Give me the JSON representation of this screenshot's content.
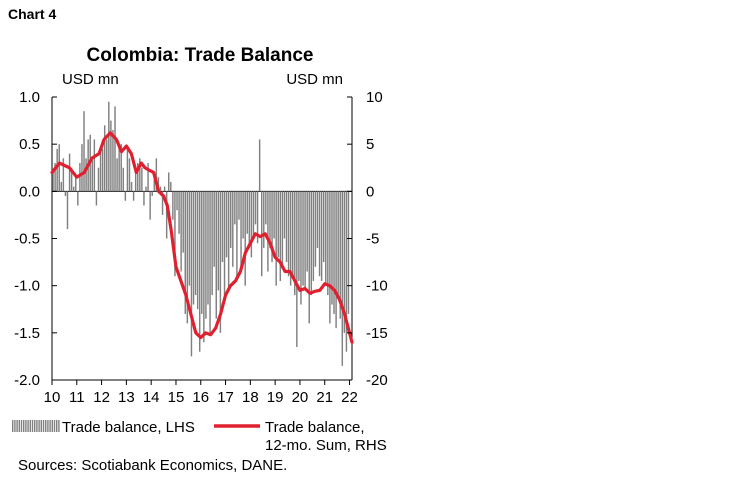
{
  "page": {
    "chart_label": "Chart 4",
    "source": "Sources: Scotiabank Economics, DANE."
  },
  "chart_data": {
    "type": "bar",
    "title": "Colombia: Trade Balance",
    "left_unit": "USD mn",
    "right_unit": "USD mn",
    "x_ticks": [
      "10",
      "11",
      "12",
      "13",
      "14",
      "15",
      "16",
      "17",
      "18",
      "19",
      "20",
      "21",
      "22"
    ],
    "x_range": [
      2010,
      2022.1
    ],
    "y_left": {
      "range": [
        -2.0,
        1.0
      ],
      "ticks": [
        "1.0",
        "0.5",
        "0.0",
        "-0.5",
        "-1.0",
        "-1.5",
        "-2.0"
      ]
    },
    "y_right": {
      "range": [
        -20,
        10
      ],
      "ticks": [
        "10",
        "5",
        "0",
        "-5",
        "-10",
        "-15",
        "-20"
      ]
    },
    "grid": false,
    "legend_position": "bottom",
    "series": [
      {
        "name": "Trade balance, LHS",
        "axis": "left",
        "kind": "bar",
        "color": "#808080",
        "start_year": 2010,
        "values": [
          0.2,
          0.3,
          0.45,
          0.5,
          0.1,
          0.35,
          -0.05,
          -0.4,
          0.4,
          0.25,
          0.05,
          0.15,
          -0.15,
          0.3,
          0.5,
          0.85,
          0.35,
          0.55,
          0.6,
          0.35,
          0.55,
          -0.15,
          0.25,
          0.45,
          0.45,
          0.7,
          0.55,
          0.95,
          0.75,
          0.65,
          0.9,
          0.35,
          0.5,
          0.5,
          0.25,
          -0.1,
          0.45,
          0.35,
          0.1,
          -0.1,
          0.2,
          0.3,
          0.35,
          0.25,
          -0.15,
          0.05,
          0.3,
          -0.3,
          -0.05,
          0.2,
          0.35,
          0.15,
          0.05,
          -0.25,
          0.05,
          -0.5,
          0.2,
          0.1,
          -0.3,
          -0.9,
          -0.2,
          -0.45,
          -0.85,
          -0.65,
          -1.3,
          -1.4,
          -1.0,
          -1.75,
          -1.2,
          -1.1,
          -1.25,
          -1.7,
          -1.3,
          -1.6,
          -1.35,
          -1.2,
          -1.5,
          -1.1,
          -0.8,
          -1.35,
          -1.05,
          -1.5,
          -0.75,
          -1.1,
          -0.7,
          -1.05,
          -0.6,
          -0.8,
          -0.35,
          -0.9,
          -0.3,
          -0.8,
          -0.5,
          -1.0,
          -0.45,
          -0.6,
          -0.7,
          -0.5,
          -0.35,
          -0.55,
          0.55,
          -0.9,
          -0.6,
          -0.35,
          -0.85,
          -0.6,
          -0.75,
          -0.5,
          -1.0,
          -0.7,
          -0.95,
          -0.8,
          -0.5,
          -0.75,
          -0.9,
          -1.0,
          -0.9,
          -1.1,
          -1.65,
          -0.95,
          -1.2,
          -1.0,
          -1.05,
          -0.85,
          -1.4,
          -1.1,
          -0.95,
          -0.8,
          -0.6,
          -0.9,
          -0.95,
          -0.75,
          -1.0,
          -1.1,
          -1.4,
          -1.2,
          -1.3,
          -1.45,
          -1.1,
          -1.35,
          -1.85,
          -1.5,
          -1.7,
          -1.3
        ]
      },
      {
        "name": "Trade balance, 12-mo. Sum, RHS",
        "axis": "right",
        "kind": "line",
        "color": "#e0202e",
        "points": [
          [
            2010.0,
            2.0
          ],
          [
            2010.3,
            3.0
          ],
          [
            2010.7,
            2.5
          ],
          [
            2011.0,
            1.5
          ],
          [
            2011.3,
            2.0
          ],
          [
            2011.6,
            3.5
          ],
          [
            2011.9,
            4.0
          ],
          [
            2012.1,
            5.5
          ],
          [
            2012.35,
            6.2
          ],
          [
            2012.6,
            5.5
          ],
          [
            2012.8,
            4.2
          ],
          [
            2013.0,
            4.8
          ],
          [
            2013.2,
            4.0
          ],
          [
            2013.4,
            2.0
          ],
          [
            2013.6,
            3.0
          ],
          [
            2013.75,
            2.5
          ],
          [
            2013.95,
            2.2
          ],
          [
            2014.1,
            2.0
          ],
          [
            2014.3,
            0.0
          ],
          [
            2014.5,
            -0.5
          ],
          [
            2014.65,
            -1.5
          ],
          [
            2014.8,
            -4.0
          ],
          [
            2015.0,
            -8.0
          ],
          [
            2015.2,
            -9.5
          ],
          [
            2015.4,
            -11.0
          ],
          [
            2015.6,
            -13.0
          ],
          [
            2015.8,
            -15.0
          ],
          [
            2016.0,
            -15.5
          ],
          [
            2016.2,
            -15.0
          ],
          [
            2016.4,
            -15.2
          ],
          [
            2016.6,
            -14.5
          ],
          [
            2016.8,
            -13.0
          ],
          [
            2017.0,
            -11.0
          ],
          [
            2017.2,
            -10.0
          ],
          [
            2017.4,
            -9.5
          ],
          [
            2017.6,
            -8.5
          ],
          [
            2017.8,
            -6.5
          ],
          [
            2018.0,
            -5.5
          ],
          [
            2018.2,
            -4.5
          ],
          [
            2018.4,
            -4.8
          ],
          [
            2018.6,
            -4.5
          ],
          [
            2018.8,
            -5.5
          ],
          [
            2019.0,
            -7.0
          ],
          [
            2019.2,
            -7.5
          ],
          [
            2019.4,
            -8.5
          ],
          [
            2019.6,
            -8.5
          ],
          [
            2019.8,
            -9.5
          ],
          [
            2020.0,
            -10.5
          ],
          [
            2020.2,
            -10.3
          ],
          [
            2020.4,
            -10.8
          ],
          [
            2020.6,
            -10.6
          ],
          [
            2020.8,
            -10.5
          ],
          [
            2021.0,
            -9.8
          ],
          [
            2021.2,
            -10.0
          ],
          [
            2021.4,
            -10.5
          ],
          [
            2021.6,
            -11.5
          ],
          [
            2021.8,
            -13.0
          ],
          [
            2022.0,
            -15.0
          ],
          [
            2022.1,
            -16.0
          ]
        ]
      }
    ],
    "legend": [
      {
        "label_lines": [
          "Trade balance, LHS"
        ],
        "symbol": "bar"
      },
      {
        "label_lines": [
          "Trade balance,",
          "12-mo. Sum, RHS"
        ],
        "symbol": "line"
      }
    ]
  }
}
